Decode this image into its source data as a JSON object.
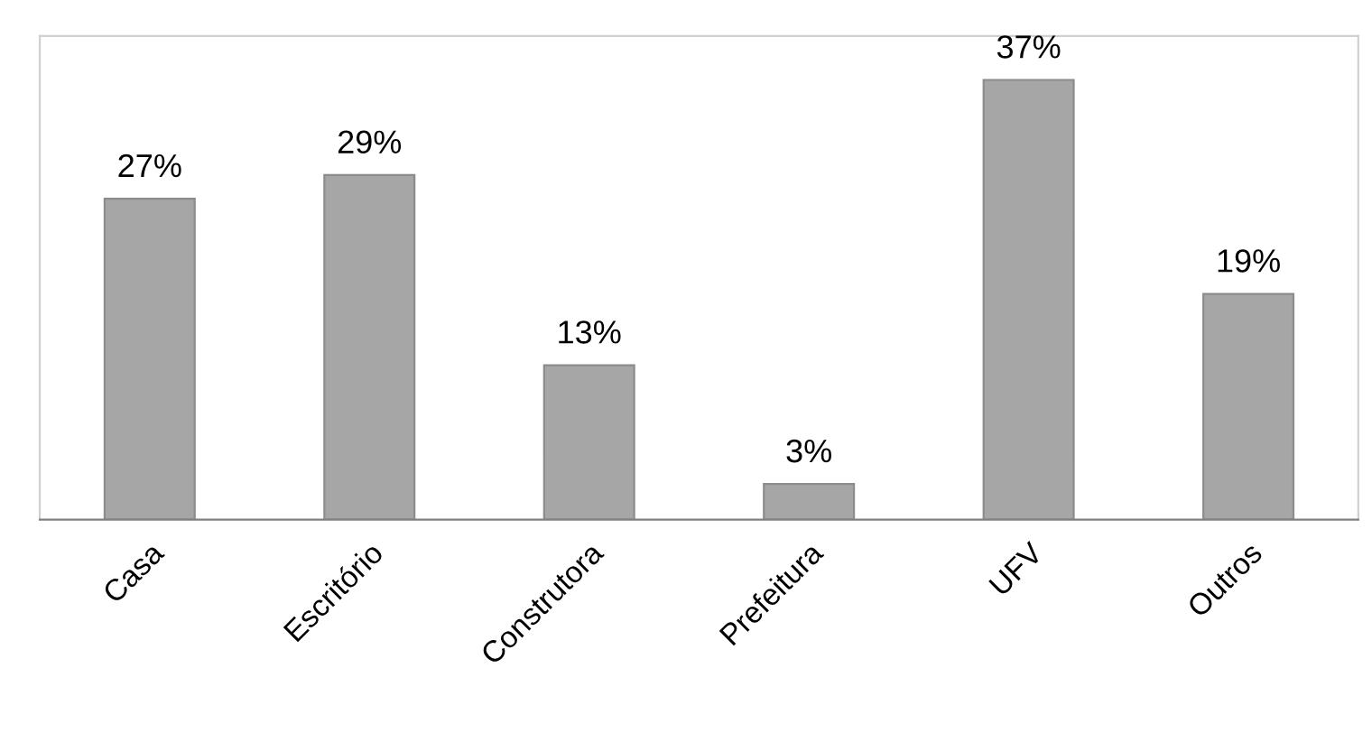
{
  "chart_data": {
    "type": "bar",
    "categories": [
      "Casa",
      "Escritório",
      "Construtora",
      "Prefeitura",
      "UFV",
      "Outros"
    ],
    "values": [
      27,
      29,
      13,
      3,
      37,
      19
    ],
    "value_labels": [
      "27%",
      "29%",
      "13%",
      "3%",
      "37%",
      "19%"
    ],
    "color": "#a6a6a6",
    "grid": false,
    "legend": false
  }
}
